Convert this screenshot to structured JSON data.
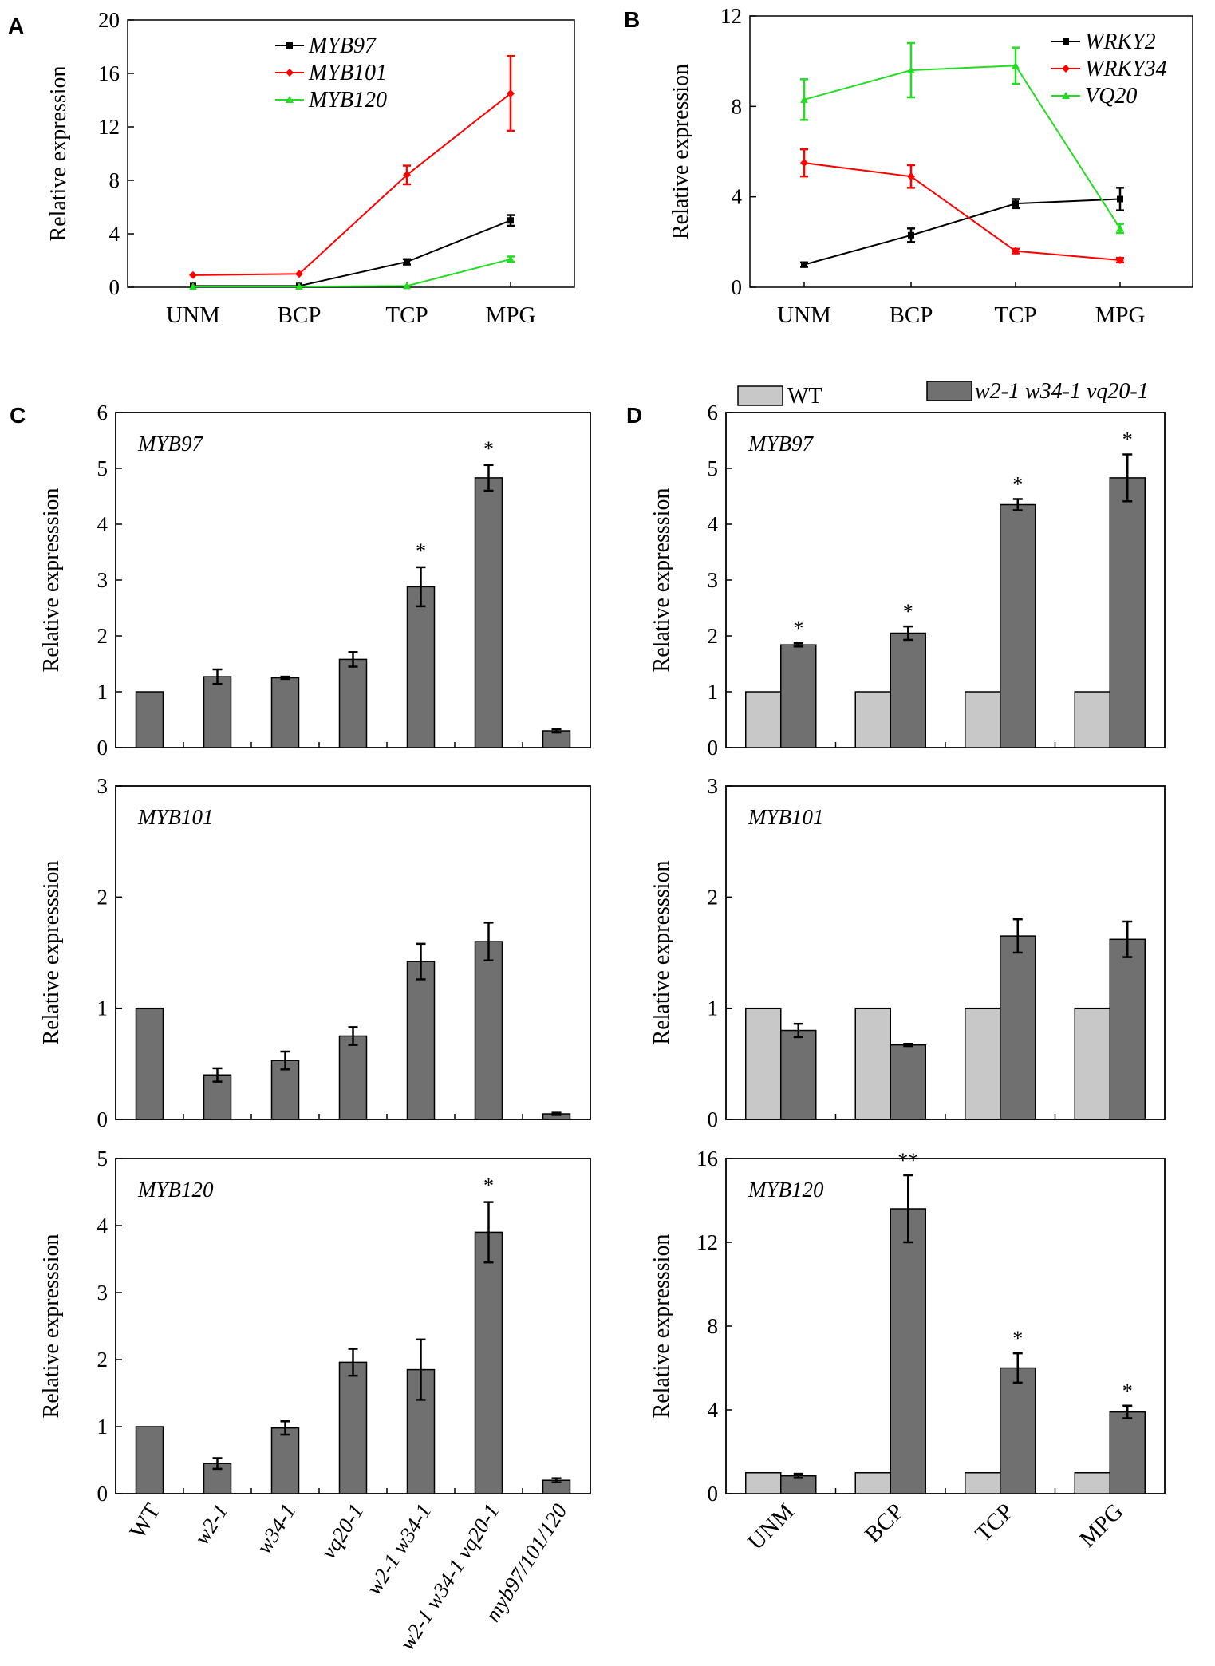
{
  "colors": {
    "black": "#000000",
    "red": "#ff0000",
    "green": "#22dd22",
    "wt_bar": "#c8c8c8",
    "mut_bar": "#707070"
  },
  "chart_data": [
    {
      "panel": "A",
      "type": "line",
      "ylabel": "Relative expression",
      "categories": [
        "UNM",
        "BCP",
        "TCP",
        "MPG"
      ],
      "yticks": [
        "0",
        "4",
        "8",
        "12",
        "16",
        "20"
      ],
      "ylim": [
        0,
        20
      ],
      "series": [
        {
          "name": "MYB97",
          "color": "#000000",
          "marker": "square",
          "values": [
            0.1,
            0.1,
            1.9,
            5.0
          ],
          "errors": [
            0.05,
            0.05,
            0.2,
            0.4
          ]
        },
        {
          "name": "MYB101",
          "color": "#ff0000",
          "marker": "diamond",
          "values": [
            0.9,
            1.0,
            8.4,
            14.5
          ],
          "errors": [
            0.05,
            0.05,
            0.7,
            2.8
          ]
        },
        {
          "name": "MYB120",
          "color": "#22dd22",
          "marker": "triangle",
          "values": [
            0.05,
            0.05,
            0.1,
            2.1
          ],
          "errors": [
            0.02,
            0.02,
            0.05,
            0.2
          ]
        }
      ]
    },
    {
      "panel": "B",
      "type": "line",
      "ylabel": "Relative expression",
      "categories": [
        "UNM",
        "BCP",
        "TCP",
        "MPG"
      ],
      "yticks": [
        "0",
        "4",
        "8",
        "12"
      ],
      "ylim": [
        0,
        12
      ],
      "series": [
        {
          "name": "WRKY2",
          "color": "#000000",
          "marker": "square",
          "values": [
            1.0,
            2.3,
            3.7,
            3.9
          ],
          "errors": [
            0.1,
            0.3,
            0.2,
            0.5
          ]
        },
        {
          "name": "WRKY34",
          "color": "#ff0000",
          "marker": "diamond",
          "values": [
            5.5,
            4.9,
            1.6,
            1.2
          ],
          "errors": [
            0.6,
            0.5,
            0.1,
            0.1
          ]
        },
        {
          "name": "VQ20",
          "color": "#22dd22",
          "marker": "triangle",
          "values": [
            8.3,
            9.6,
            9.8,
            2.6
          ],
          "errors": [
            0.9,
            1.2,
            0.8,
            0.2
          ]
        }
      ]
    },
    {
      "panel": "C",
      "type": "bar",
      "ylabel": "Relative expresssion",
      "categories": [
        "WT",
        "w2-1",
        "w34-1",
        "vq20-1",
        "w2-1 w34-1",
        "w2-1 w34-1 vq20-1",
        "myb97/101/120"
      ],
      "subplots": [
        {
          "gene": "MYB97",
          "ylim": [
            0,
            6
          ],
          "yticks": [
            "0",
            "1",
            "2",
            "3",
            "4",
            "5",
            "6"
          ],
          "values": [
            1.0,
            1.27,
            1.25,
            1.58,
            2.88,
            4.83,
            0.3
          ],
          "errors": [
            0,
            0.13,
            0.02,
            0.13,
            0.35,
            0.23,
            0.03
          ],
          "stars": [
            "",
            "",
            "",
            "",
            "*",
            "*",
            ""
          ]
        },
        {
          "gene": "MYB101",
          "ylim": [
            0,
            3
          ],
          "yticks": [
            "0",
            "1",
            "2",
            "3"
          ],
          "values": [
            1.0,
            0.4,
            0.53,
            0.75,
            1.42,
            1.6,
            0.05
          ],
          "errors": [
            0,
            0.06,
            0.08,
            0.08,
            0.16,
            0.17,
            0.01
          ],
          "stars": [
            "",
            "",
            "",
            "",
            "",
            "",
            ""
          ]
        },
        {
          "gene": "MYB120",
          "ylim": [
            0,
            5
          ],
          "yticks": [
            "0",
            "1",
            "2",
            "3",
            "4",
            "5"
          ],
          "values": [
            1.0,
            0.45,
            0.98,
            1.96,
            1.85,
            3.9,
            0.2
          ],
          "errors": [
            0,
            0.08,
            0.1,
            0.2,
            0.45,
            0.45,
            0.03
          ],
          "stars": [
            "",
            "",
            "",
            "",
            "",
            "*",
            ""
          ]
        }
      ]
    },
    {
      "panel": "D",
      "type": "bar",
      "ylabel": "Relative expresssion",
      "legend": [
        "WT",
        "w2-1 w34-1 vq20-1"
      ],
      "categories": [
        "UNM",
        "BCP",
        "TCP",
        "MPG"
      ],
      "subplots": [
        {
          "gene": "MYB97",
          "ylim": [
            0,
            6
          ],
          "yticks": [
            "0",
            "1",
            "2",
            "3",
            "4",
            "5",
            "6"
          ],
          "series": [
            {
              "name": "WT",
              "values": [
                1,
                1,
                1,
                1
              ]
            },
            {
              "name": "w2-1 w34-1 vq20-1",
              "values": [
                1.84,
                2.05,
                4.35,
                4.83
              ],
              "errors": [
                0.03,
                0.12,
                0.1,
                0.42
              ]
            }
          ],
          "stars": [
            "*",
            "*",
            "*",
            "*"
          ]
        },
        {
          "gene": "MYB101",
          "ylim": [
            0,
            3
          ],
          "yticks": [
            "0",
            "1",
            "2",
            "3"
          ],
          "series": [
            {
              "name": "WT",
              "values": [
                1,
                1,
                1,
                1
              ]
            },
            {
              "name": "w2-1 w34-1 vq20-1",
              "values": [
                0.8,
                0.67,
                1.65,
                1.62
              ],
              "errors": [
                0.06,
                0.01,
                0.15,
                0.16
              ]
            }
          ],
          "stars": [
            "",
            "",
            "",
            ""
          ]
        },
        {
          "gene": "MYB120",
          "ylim": [
            0,
            16
          ],
          "yticks": [
            "0",
            "4",
            "8",
            "12",
            "16"
          ],
          "series": [
            {
              "name": "WT",
              "values": [
                1,
                1,
                1,
                1
              ]
            },
            {
              "name": "w2-1 w34-1 vq20-1",
              "values": [
                0.85,
                13.6,
                6.0,
                3.9
              ],
              "errors": [
                0.1,
                1.6,
                0.7,
                0.3
              ]
            }
          ],
          "stars": [
            "",
            "**",
            "*",
            "*"
          ]
        }
      ]
    }
  ]
}
